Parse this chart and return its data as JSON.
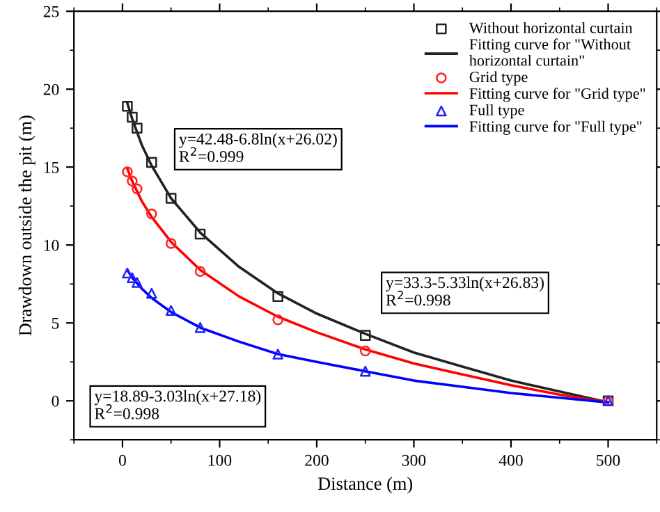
{
  "chart_data": {
    "type": "scatter",
    "xlabel": "Distance (m)",
    "ylabel": "Drawdown outside the pit (m)",
    "xlim": [
      -50,
      550
    ],
    "xticks": [
      0,
      100,
      200,
      300,
      400,
      500
    ],
    "ylim": [
      -2.5,
      25
    ],
    "yticks": [
      0,
      5,
      10,
      15,
      20,
      25
    ],
    "grid": false,
    "legend": "top right",
    "series": [
      {
        "name": "Without horizontal curtain",
        "marker": "square",
        "color": "#222222",
        "x": [
          5,
          10,
          15,
          30,
          50,
          80,
          160,
          250,
          500
        ],
        "values": [
          18.9,
          18.2,
          17.5,
          15.3,
          13.0,
          10.7,
          6.7,
          4.2,
          0
        ]
      },
      {
        "name": "Fitting curve for \"Without\nhorizontal curtain\"",
        "type": "line",
        "marker": "none",
        "color": "#222222",
        "x": [
          5,
          10,
          20,
          30,
          50,
          80,
          120,
          160,
          200,
          250,
          300,
          350,
          400,
          450,
          500
        ],
        "values": [
          19.1,
          18.1,
          16.4,
          15.1,
          13.0,
          10.8,
          8.6,
          6.9,
          5.6,
          4.3,
          3.1,
          2.2,
          1.3,
          0.6,
          -0.1
        ]
      },
      {
        "name": "Grid type",
        "marker": "circle",
        "color": "#ff2020",
        "x": [
          5,
          10,
          15,
          30,
          50,
          80,
          160,
          250,
          500
        ],
        "values": [
          14.7,
          14.1,
          13.6,
          12.0,
          10.1,
          8.3,
          5.2,
          3.2,
          0
        ]
      },
      {
        "name": "Fitting curve for \"Grid type\"",
        "type": "line",
        "marker": "none",
        "color": "#ff0000",
        "x": [
          5,
          10,
          20,
          30,
          50,
          80,
          120,
          160,
          200,
          250,
          300,
          350,
          400,
          450,
          500
        ],
        "values": [
          14.9,
          14.1,
          12.8,
          11.8,
          10.2,
          8.4,
          6.7,
          5.4,
          4.4,
          3.3,
          2.4,
          1.7,
          1.0,
          0.4,
          -0.1
        ]
      },
      {
        "name": "Full type",
        "marker": "triangle",
        "color": "#2020ff",
        "x": [
          5,
          10,
          15,
          30,
          50,
          80,
          160,
          250,
          500
        ],
        "values": [
          8.2,
          7.9,
          7.6,
          6.9,
          5.8,
          4.7,
          3.0,
          1.9,
          0
        ]
      },
      {
        "name": "Fitting curve for \"Full type\"",
        "type": "line",
        "marker": "none",
        "color": "#0000ff",
        "x": [
          5,
          10,
          20,
          30,
          50,
          80,
          120,
          160,
          200,
          250,
          300,
          350,
          400,
          450,
          500
        ],
        "values": [
          8.4,
          7.9,
          7.2,
          6.6,
          5.7,
          4.7,
          3.8,
          3.0,
          2.5,
          1.9,
          1.3,
          0.9,
          0.5,
          0.2,
          -0.1
        ]
      }
    ],
    "annotations": [
      "y=42.48-6.8ln(x+26.02)\nR$^{2}$=0.999",
      "y=33.3-5.33ln(x+26.83)\nR$^{2}$=0.998",
      "y=18.89-3.03ln(x+27.18)\nR$^{2}$=0.998"
    ]
  }
}
